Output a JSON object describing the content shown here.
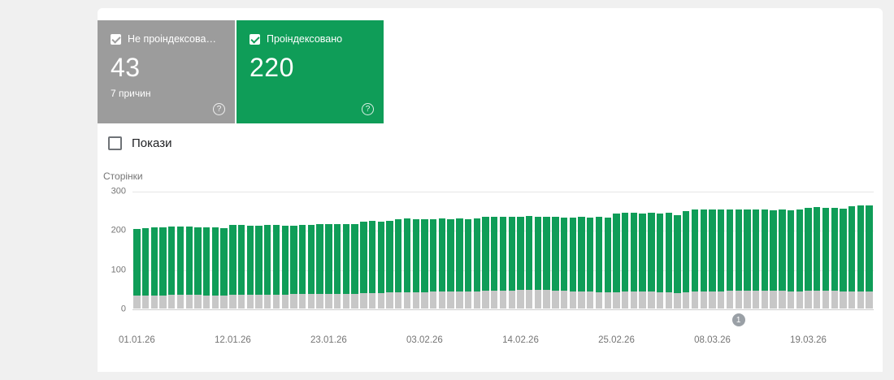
{
  "cards": {
    "help_glyph": "?",
    "not_indexed": {
      "label": "Не проіндексова…",
      "value": "43",
      "subtitle": "7 причин",
      "checked": true
    },
    "indexed": {
      "label": "Проіндексовано",
      "value": "220",
      "checked": true
    }
  },
  "impressions": {
    "label": "Покази",
    "checked": false
  },
  "colors": {
    "green": "#0f9d58",
    "card_gray": "#9c9c9c",
    "bar_gray": "#c7c7c7",
    "page_background": "#f0f0f0"
  },
  "chart_data": {
    "type": "bar",
    "stacked": true,
    "title": "",
    "xlabel": "",
    "ylabel": "Сторінки",
    "ylim": [
      0,
      300
    ],
    "yticks": [
      0,
      100,
      200,
      300
    ],
    "grid": true,
    "legend_position": "none",
    "x_tick_labels": [
      "01.01.26",
      "12.01.26",
      "23.01.26",
      "03.02.26",
      "14.02.26",
      "25.02.26",
      "08.03.26",
      "19.03.26"
    ],
    "x_tick_every": 11,
    "series": [
      {
        "name": "Не проіндексовано",
        "color": "#c7c7c7",
        "values": [
          33,
          34,
          34,
          34,
          35,
          35,
          35,
          35,
          34,
          34,
          34,
          35,
          35,
          35,
          36,
          36,
          36,
          36,
          37,
          37,
          37,
          37,
          38,
          38,
          38,
          38,
          39,
          40,
          40,
          41,
          42,
          42,
          42,
          42,
          43,
          43,
          43,
          43,
          44,
          44,
          45,
          46,
          46,
          46,
          47,
          48,
          48,
          47,
          46,
          45,
          44,
          44,
          43,
          42,
          41,
          42,
          43,
          43,
          43,
          43,
          42,
          41,
          40,
          42,
          43,
          44,
          44,
          44,
          45,
          45,
          45,
          46,
          46,
          45,
          45,
          44,
          44,
          45,
          46,
          46,
          45,
          44,
          43,
          43,
          43
        ]
      },
      {
        "name": "Проіндексовано",
        "color": "#0f9d58",
        "values": [
          170,
          171,
          172,
          173,
          173,
          173,
          173,
          172,
          173,
          172,
          171,
          178,
          178,
          177,
          176,
          177,
          177,
          176,
          175,
          176,
          177,
          178,
          177,
          178,
          177,
          178,
          183,
          183,
          182,
          182,
          186,
          187,
          186,
          186,
          185,
          186,
          185,
          186,
          184,
          185,
          188,
          188,
          188,
          187,
          187,
          187,
          186,
          187,
          187,
          187,
          188,
          189,
          189,
          191,
          191,
          201,
          201,
          201,
          200,
          201,
          201,
          203,
          198,
          206,
          209,
          209,
          208,
          209,
          207,
          208,
          207,
          207,
          206,
          206,
          207,
          207,
          208,
          212,
          212,
          211,
          211,
          211,
          218,
          219,
          220
        ]
      }
    ],
    "annotation": {
      "label": "1",
      "index": 69
    }
  }
}
